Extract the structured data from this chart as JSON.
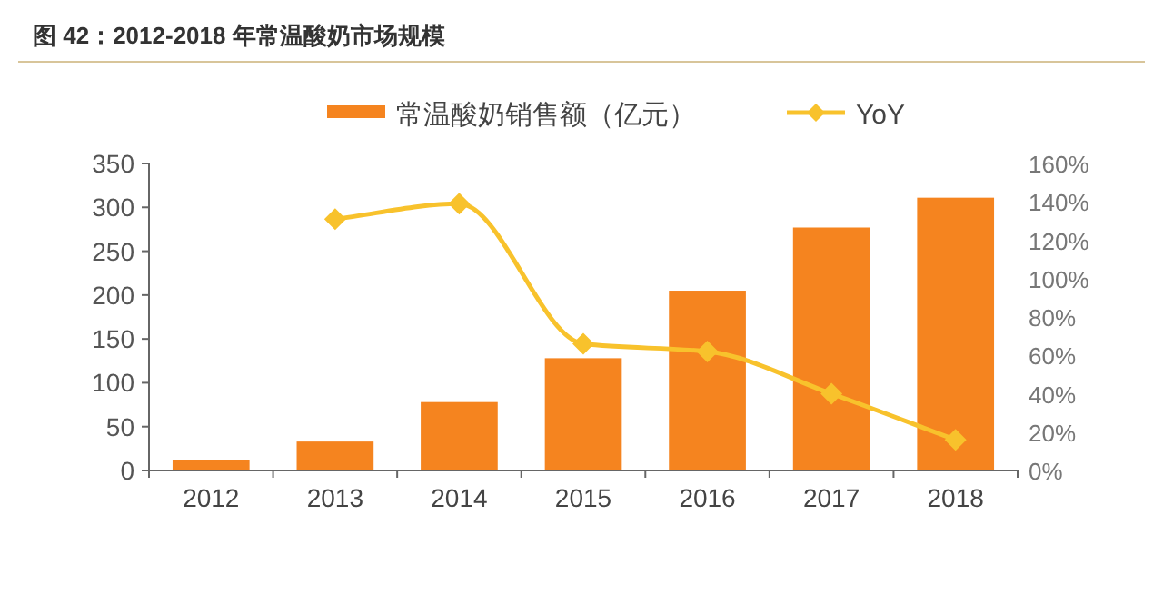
{
  "chart_data": {
    "type": "bar",
    "title": "图 42：2012-2018 年常温酸奶市场规模",
    "categories": [
      "2012",
      "2013",
      "2014",
      "2015",
      "2016",
      "2017",
      "2018"
    ],
    "series": [
      {
        "name": "常温酸奶销售额（亿元）",
        "color": "#f5841f",
        "values": [
          12,
          33,
          78,
          128,
          205,
          277,
          311
        ]
      },
      {
        "name": "YoY",
        "color": "#f8c22c",
        "type": "line",
        "axis": "y2",
        "marker": "diamond",
        "values": [
          null,
          131,
          139,
          66,
          62,
          40,
          16
        ]
      }
    ],
    "ylim": [
      0,
      350
    ],
    "yticks": [
      0,
      50,
      100,
      150,
      200,
      250,
      300,
      350
    ],
    "y2lim": [
      0,
      160
    ],
    "y2ticks": [
      {
        "value": 0,
        "label": "0%"
      },
      {
        "value": 20,
        "label": "20%"
      },
      {
        "value": 40,
        "label": "40%"
      },
      {
        "value": 60,
        "label": "60%"
      },
      {
        "value": 80,
        "label": "80%"
      },
      {
        "value": 100,
        "label": "100%"
      },
      {
        "value": 120,
        "label": "120%"
      },
      {
        "value": 140,
        "label": "140%"
      },
      {
        "value": 160,
        "label": "160%"
      }
    ],
    "legend": "top",
    "grid": false
  }
}
